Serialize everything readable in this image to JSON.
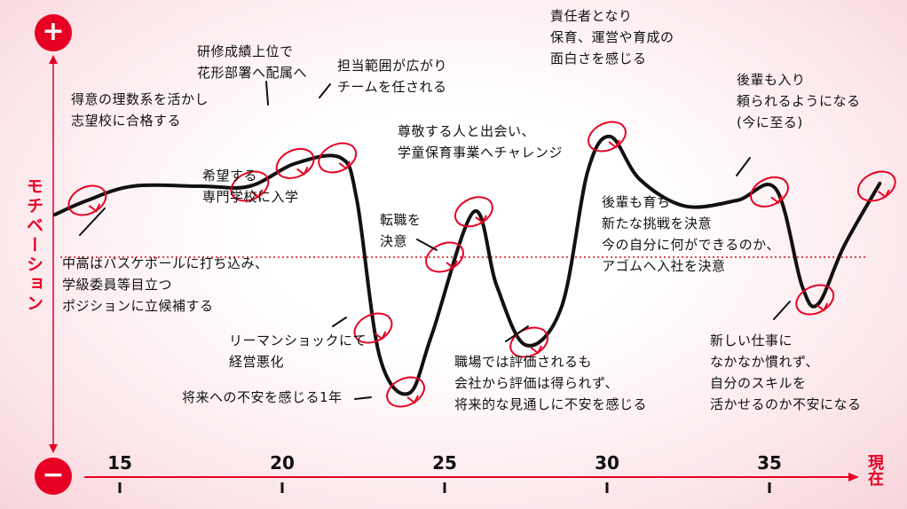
{
  "chart_data": {
    "type": "line",
    "ylabel": "モチベーション",
    "y_top_symbol": "+",
    "y_bottom_symbol": "−",
    "x_end_label": "現在",
    "xlim": [
      12,
      40
    ],
    "x_ticks": [
      15,
      20,
      25,
      30,
      35
    ],
    "ylim": [
      -100,
      100
    ],
    "curve": [
      {
        "age": 13.0,
        "value": 30
      },
      {
        "age": 14.0,
        "value": 40
      },
      {
        "age": 15.4,
        "value": 50
      },
      {
        "age": 17.5,
        "value": 50
      },
      {
        "age": 19.0,
        "value": 50
      },
      {
        "age": 20.4,
        "value": 66
      },
      {
        "age": 21.8,
        "value": 70
      },
      {
        "age": 22.3,
        "value": 40
      },
      {
        "age": 23.0,
        "value": -70
      },
      {
        "age": 23.9,
        "value": -96
      },
      {
        "age": 24.6,
        "value": -55
      },
      {
        "age": 25.9,
        "value": 32
      },
      {
        "age": 26.6,
        "value": -20
      },
      {
        "age": 27.5,
        "value": -62
      },
      {
        "age": 28.6,
        "value": -35
      },
      {
        "age": 29.4,
        "value": 60
      },
      {
        "age": 30.1,
        "value": 85
      },
      {
        "age": 31.0,
        "value": 55
      },
      {
        "age": 32.4,
        "value": 36
      },
      {
        "age": 34.0,
        "value": 40
      },
      {
        "age": 35.2,
        "value": 48
      },
      {
        "age": 36.0,
        "value": -20
      },
      {
        "age": 36.5,
        "value": -33
      },
      {
        "age": 37.3,
        "value": 8
      },
      {
        "age": 38.4,
        "value": 52
      }
    ],
    "events": [
      {
        "age": 14.0,
        "value": 40
      },
      {
        "age": 19.0,
        "value": 50
      },
      {
        "age": 20.4,
        "value": 66
      },
      {
        "age": 21.7,
        "value": 70
      },
      {
        "age": 22.8,
        "value": -50
      },
      {
        "age": 23.8,
        "value": -95
      },
      {
        "age": 25.0,
        "value": 0
      },
      {
        "age": 25.9,
        "value": 32
      },
      {
        "age": 27.6,
        "value": -60
      },
      {
        "age": 30.0,
        "value": 85
      },
      {
        "age": 35.0,
        "value": 46
      },
      {
        "age": 36.4,
        "value": -30
      },
      {
        "age": 38.3,
        "value": 50
      }
    ]
  },
  "annotations": [
    {
      "id": "a1",
      "text": "得意の理数系を活かし\n志望校に合格する"
    },
    {
      "id": "a2",
      "text": "中高はバスケボールに打ち込み、\n学級委員等目立つ\nポジションに立候補する"
    },
    {
      "id": "a3",
      "text": "研修成績上位で\n花形部署へ配属へ"
    },
    {
      "id": "a4",
      "text": "希望する\n専門学校に入学"
    },
    {
      "id": "a5",
      "text": "担当範囲が広がり\nチームを任される"
    },
    {
      "id": "a6",
      "text": "リーマンショックにて\n経営悪化"
    },
    {
      "id": "a7",
      "text": "将来への不安を感じる1年"
    },
    {
      "id": "a8",
      "text": "転職を\n決意"
    },
    {
      "id": "a9",
      "text": "尊敬する人と出会い、\n学童保育事業へチャレンジ"
    },
    {
      "id": "a10",
      "text": "職場では評価されるも\n会社から評価は得られず、\n将来的な見通しに不安を感じる"
    },
    {
      "id": "a11",
      "text": "責任者となり\n保育、運営や育成の\n面白さを感じる"
    },
    {
      "id": "a12",
      "text": "後輩も育ち\n新たな挑戦を決意\n今の自分に何ができるのか、\nアゴムへ入社を決意"
    },
    {
      "id": "a13",
      "text": "後輩も入り\n頼られるようになる\n(今に至る)"
    },
    {
      "id": "a14",
      "text": "新しい仕事に\nなかなか慣れず、\n自分のスキルを\n活かせるのか不安になる"
    }
  ],
  "colors": {
    "accent": "#e60023",
    "curve": "#111111"
  }
}
